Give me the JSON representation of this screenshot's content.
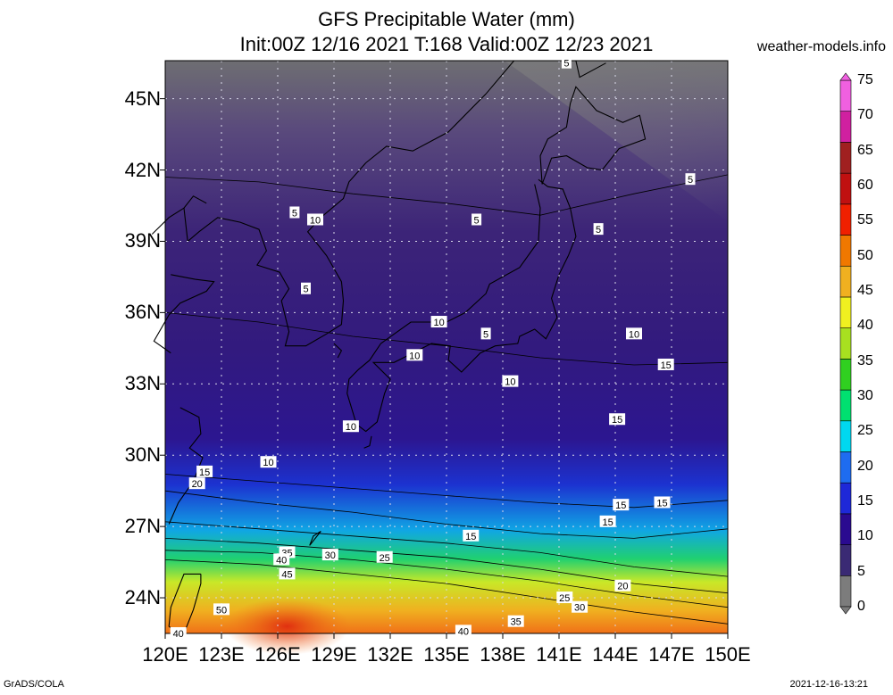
{
  "title_line1": "GFS Precipitable Water (mm)",
  "title_line2": "Init:00Z 12/16 2021 T:168 Valid:00Z 12/23 2021",
  "site": "weather-models.info",
  "credit": "GrADS/COLA",
  "timestamp": "2021-12-16-13:21",
  "lat_labels": [
    "45N",
    "42N",
    "39N",
    "36N",
    "33N",
    "30N",
    "27N",
    "24N"
  ],
  "lat_values": [
    45,
    42,
    39,
    36,
    33,
    30,
    27,
    24
  ],
  "lon_labels": [
    "120E",
    "123E",
    "126E",
    "129E",
    "132E",
    "135E",
    "138E",
    "141E",
    "144E",
    "147E",
    "150E"
  ],
  "lon_values": [
    120,
    123,
    126,
    129,
    132,
    135,
    138,
    141,
    144,
    147,
    150
  ],
  "map_extent": {
    "lon": [
      120,
      150
    ],
    "lat": [
      22.5,
      46.6
    ]
  },
  "colorbar": {
    "labels": [
      "75",
      "70",
      "65",
      "60",
      "55",
      "50",
      "45",
      "40",
      "35",
      "30",
      "25",
      "20",
      "15",
      "10",
      "5",
      "0"
    ],
    "values": [
      75,
      70,
      65,
      60,
      55,
      50,
      45,
      40,
      35,
      30,
      25,
      20,
      15,
      10,
      5,
      0
    ],
    "colors": [
      "#7c7c7c",
      "#3a2a74",
      "#2a0a90",
      "#1e28d8",
      "#1e6cf0",
      "#00d8f0",
      "#00e070",
      "#30d020",
      "#a8e020",
      "#f0f020",
      "#f0b020",
      "#f07800",
      "#f02000",
      "#c01010",
      "#a02020",
      "#d020a0",
      "#f060e0"
    ]
  },
  "contour_labels": [
    {
      "text": "5",
      "lon": 141.4,
      "lat": 46.5
    },
    {
      "text": "5",
      "lon": 148.0,
      "lat": 41.6
    },
    {
      "text": "5",
      "lon": 126.9,
      "lat": 40.2
    },
    {
      "text": "10",
      "lon": 128.0,
      "lat": 39.9
    },
    {
      "text": "5",
      "lon": 136.6,
      "lat": 39.9
    },
    {
      "text": "5",
      "lon": 143.1,
      "lat": 39.5
    },
    {
      "text": "5",
      "lon": 127.5,
      "lat": 37.0
    },
    {
      "text": "10",
      "lon": 134.6,
      "lat": 35.6
    },
    {
      "text": "5",
      "lon": 137.1,
      "lat": 35.1
    },
    {
      "text": "10",
      "lon": 145.0,
      "lat": 35.1
    },
    {
      "text": "10",
      "lon": 133.3,
      "lat": 34.2
    },
    {
      "text": "15",
      "lon": 146.7,
      "lat": 33.8
    },
    {
      "text": "10",
      "lon": 138.4,
      "lat": 33.1
    },
    {
      "text": "15",
      "lon": 144.1,
      "lat": 31.5
    },
    {
      "text": "10",
      "lon": 129.9,
      "lat": 31.2
    },
    {
      "text": "10",
      "lon": 125.5,
      "lat": 29.7
    },
    {
      "text": "15",
      "lon": 122.1,
      "lat": 29.3
    },
    {
      "text": "20",
      "lon": 121.7,
      "lat": 28.8
    },
    {
      "text": "15",
      "lon": 144.3,
      "lat": 27.9
    },
    {
      "text": "15",
      "lon": 146.5,
      "lat": 28.0
    },
    {
      "text": "15",
      "lon": 143.6,
      "lat": 27.2
    },
    {
      "text": "15",
      "lon": 136.3,
      "lat": 26.6
    },
    {
      "text": "35",
      "lon": 126.5,
      "lat": 25.9
    },
    {
      "text": "40",
      "lon": 126.2,
      "lat": 25.6
    },
    {
      "text": "30",
      "lon": 128.8,
      "lat": 25.8
    },
    {
      "text": "25",
      "lon": 131.7,
      "lat": 25.7
    },
    {
      "text": "45",
      "lon": 126.5,
      "lat": 25.0
    },
    {
      "text": "20",
      "lon": 144.4,
      "lat": 24.5
    },
    {
      "text": "25",
      "lon": 141.3,
      "lat": 24.0
    },
    {
      "text": "30",
      "lon": 142.1,
      "lat": 23.6
    },
    {
      "text": "50",
      "lon": 123.0,
      "lat": 23.5
    },
    {
      "text": "35",
      "lon": 138.7,
      "lat": 23.0
    },
    {
      "text": "40",
      "lon": 135.9,
      "lat": 22.6
    },
    {
      "text": "40",
      "lon": 120.7,
      "lat": 22.5
    }
  ]
}
